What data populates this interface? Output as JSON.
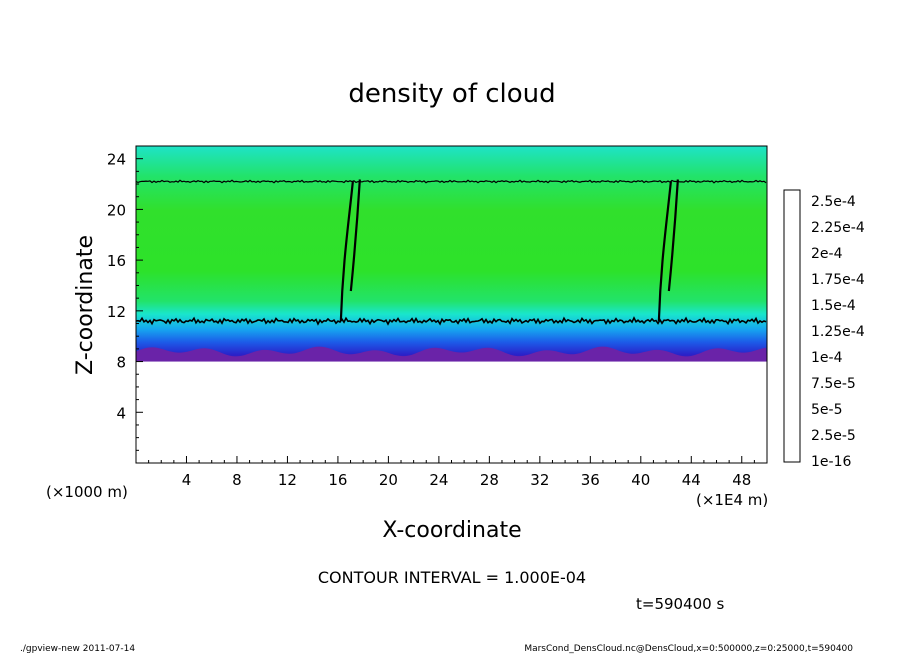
{
  "chart_data": {
    "type": "heatmap",
    "title": "density of cloud",
    "xlabel": "X-coordinate",
    "ylabel": "Z-coordinate",
    "x_unit": "(×1E4 m)",
    "y_unit": "(×1000 m)",
    "xlim": [
      0,
      50
    ],
    "ylim": [
      0,
      25
    ],
    "x_ticks": [
      "4",
      "8",
      "12",
      "16",
      "20",
      "24",
      "28",
      "32",
      "36",
      "40",
      "44",
      "48"
    ],
    "x_tick_values": [
      4,
      8,
      12,
      16,
      20,
      24,
      28,
      32,
      36,
      40,
      44,
      48
    ],
    "y_ticks": [
      "4",
      "8",
      "12",
      "16",
      "20",
      "24"
    ],
    "y_tick_values": [
      4,
      8,
      12,
      16,
      20,
      24
    ],
    "colorbar": {
      "labels": [
        "1e-16",
        "2.5e-5",
        "5e-5",
        "7.5e-5",
        "1e-4",
        "1.25e-4",
        "1.5e-4",
        "1.75e-4",
        "2e-4",
        "2.25e-4",
        "2.5e-4"
      ],
      "colors": [
        "#5c1f9e",
        "#2a20c8",
        "#1c5be8",
        "#16a6f0",
        "#19e6cc",
        "#22e36a",
        "#48e422",
        "#a8e91e",
        "#f2d81a",
        "#f08c16",
        "#f2502a",
        "#f49a9c"
      ]
    },
    "cloud_layer": {
      "base_z": 8.0,
      "top_z": 22.2,
      "contour_z": [
        11.2,
        22.2
      ],
      "plume_x": [
        17.5,
        42.7
      ]
    },
    "contour_interval_text": "CONTOUR INTERVAL = 1.000E-04",
    "time_text": "t=590400 s"
  },
  "footer": {
    "left": "./gpview-new   2011-07-14",
    "right": "MarsCond_DensCloud.nc@DensCloud,x=0:500000,z=0:25000,t=590400"
  }
}
